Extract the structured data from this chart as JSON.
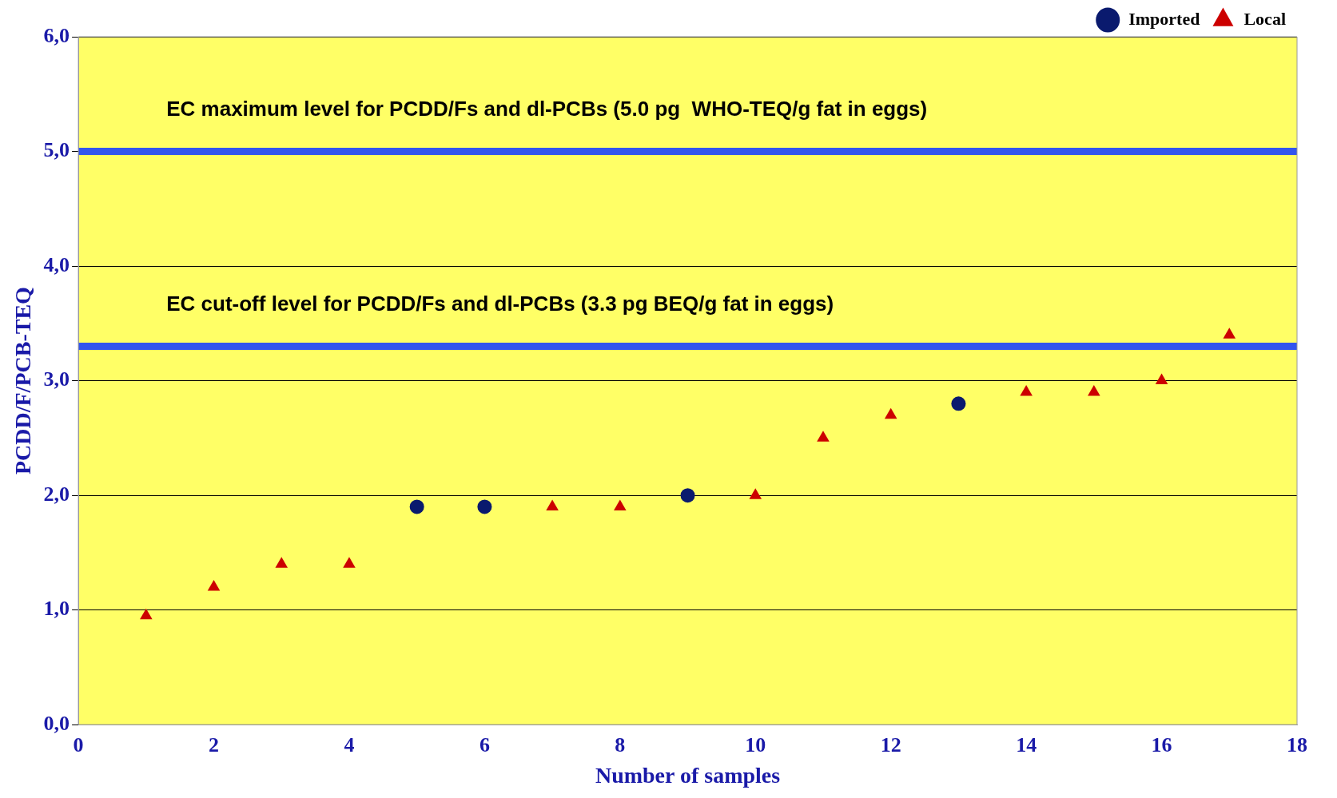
{
  "chart_data": {
    "type": "scatter",
    "xlabel": "Number of samples",
    "ylabel": "PCDD/F/PCB-TEQ",
    "xlim": [
      0,
      18
    ],
    "xticks": [
      0,
      2,
      4,
      6,
      8,
      10,
      12,
      14,
      16,
      18
    ],
    "ylim": [
      0,
      6
    ],
    "yticks": [
      {
        "value": 0,
        "label": "0,0"
      },
      {
        "value": 1,
        "label": "1,0"
      },
      {
        "value": 2,
        "label": "2,0"
      },
      {
        "value": 3,
        "label": "3,0"
      },
      {
        "value": 4,
        "label": "4,0"
      },
      {
        "value": 5,
        "label": "5,0"
      },
      {
        "value": 6,
        "label": "6,0"
      }
    ],
    "grid": "y",
    "legend": "top right",
    "series": [
      {
        "name": "Imported",
        "color": "#0a1a6e",
        "marker": "circle",
        "x": [
          5,
          6,
          9,
          13
        ],
        "values": [
          1.9,
          1.9,
          2.0,
          2.8
        ]
      },
      {
        "name": "Local",
        "color": "#cc0000",
        "marker": "triangle",
        "x": [
          1,
          2,
          3,
          4,
          7,
          8,
          10,
          11,
          12,
          14,
          15,
          16,
          17
        ],
        "values": [
          0.95,
          1.2,
          1.4,
          1.4,
          1.9,
          1.9,
          2.0,
          2.5,
          2.7,
          2.9,
          2.9,
          3.0,
          3.4
        ]
      }
    ],
    "ref_lines": [
      {
        "axis": "y",
        "value": 5.0,
        "label": "EC maximum level for PCDD/Fs and dl-PCBs (5.0 pg  WHO-TEQ/g fat in eggs)",
        "color": "#3355ee"
      },
      {
        "axis": "y",
        "value": 3.3,
        "label": "EC cut-off level for PCDD/Fs and dl-PCBs (3.3 pg BEQ/g fat in eggs)",
        "color": "#3355ee"
      }
    ]
  }
}
